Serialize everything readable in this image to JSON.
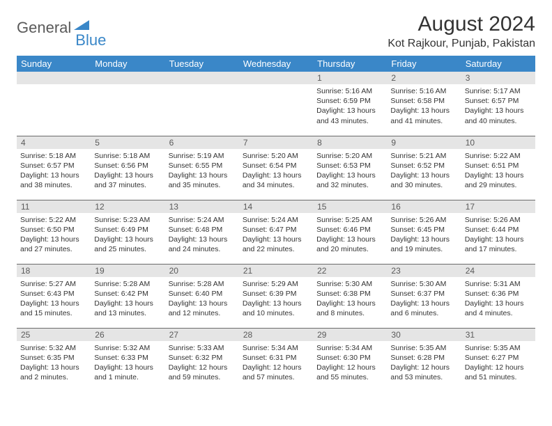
{
  "logo": {
    "part1": "General",
    "part2": "Blue"
  },
  "title": "August 2024",
  "location": "Kot Rajkour, Punjab, Pakistan",
  "colors": {
    "header_bg": "#3a87c8",
    "header_fg": "#ffffff",
    "daynum_bg": "#e5e5e5",
    "daynum_fg": "#5a5a5a",
    "border": "#6a6a6a",
    "text": "#333333"
  },
  "weekdays": [
    "Sunday",
    "Monday",
    "Tuesday",
    "Wednesday",
    "Thursday",
    "Friday",
    "Saturday"
  ],
  "weeks": [
    [
      {
        "n": "",
        "sr": "",
        "ss": "",
        "dl": ""
      },
      {
        "n": "",
        "sr": "",
        "ss": "",
        "dl": ""
      },
      {
        "n": "",
        "sr": "",
        "ss": "",
        "dl": ""
      },
      {
        "n": "",
        "sr": "",
        "ss": "",
        "dl": ""
      },
      {
        "n": "1",
        "sr": "Sunrise: 5:16 AM",
        "ss": "Sunset: 6:59 PM",
        "dl": "Daylight: 13 hours and 43 minutes."
      },
      {
        "n": "2",
        "sr": "Sunrise: 5:16 AM",
        "ss": "Sunset: 6:58 PM",
        "dl": "Daylight: 13 hours and 41 minutes."
      },
      {
        "n": "3",
        "sr": "Sunrise: 5:17 AM",
        "ss": "Sunset: 6:57 PM",
        "dl": "Daylight: 13 hours and 40 minutes."
      }
    ],
    [
      {
        "n": "4",
        "sr": "Sunrise: 5:18 AM",
        "ss": "Sunset: 6:57 PM",
        "dl": "Daylight: 13 hours and 38 minutes."
      },
      {
        "n": "5",
        "sr": "Sunrise: 5:18 AM",
        "ss": "Sunset: 6:56 PM",
        "dl": "Daylight: 13 hours and 37 minutes."
      },
      {
        "n": "6",
        "sr": "Sunrise: 5:19 AM",
        "ss": "Sunset: 6:55 PM",
        "dl": "Daylight: 13 hours and 35 minutes."
      },
      {
        "n": "7",
        "sr": "Sunrise: 5:20 AM",
        "ss": "Sunset: 6:54 PM",
        "dl": "Daylight: 13 hours and 34 minutes."
      },
      {
        "n": "8",
        "sr": "Sunrise: 5:20 AM",
        "ss": "Sunset: 6:53 PM",
        "dl": "Daylight: 13 hours and 32 minutes."
      },
      {
        "n": "9",
        "sr": "Sunrise: 5:21 AM",
        "ss": "Sunset: 6:52 PM",
        "dl": "Daylight: 13 hours and 30 minutes."
      },
      {
        "n": "10",
        "sr": "Sunrise: 5:22 AM",
        "ss": "Sunset: 6:51 PM",
        "dl": "Daylight: 13 hours and 29 minutes."
      }
    ],
    [
      {
        "n": "11",
        "sr": "Sunrise: 5:22 AM",
        "ss": "Sunset: 6:50 PM",
        "dl": "Daylight: 13 hours and 27 minutes."
      },
      {
        "n": "12",
        "sr": "Sunrise: 5:23 AM",
        "ss": "Sunset: 6:49 PM",
        "dl": "Daylight: 13 hours and 25 minutes."
      },
      {
        "n": "13",
        "sr": "Sunrise: 5:24 AM",
        "ss": "Sunset: 6:48 PM",
        "dl": "Daylight: 13 hours and 24 minutes."
      },
      {
        "n": "14",
        "sr": "Sunrise: 5:24 AM",
        "ss": "Sunset: 6:47 PM",
        "dl": "Daylight: 13 hours and 22 minutes."
      },
      {
        "n": "15",
        "sr": "Sunrise: 5:25 AM",
        "ss": "Sunset: 6:46 PM",
        "dl": "Daylight: 13 hours and 20 minutes."
      },
      {
        "n": "16",
        "sr": "Sunrise: 5:26 AM",
        "ss": "Sunset: 6:45 PM",
        "dl": "Daylight: 13 hours and 19 minutes."
      },
      {
        "n": "17",
        "sr": "Sunrise: 5:26 AM",
        "ss": "Sunset: 6:44 PM",
        "dl": "Daylight: 13 hours and 17 minutes."
      }
    ],
    [
      {
        "n": "18",
        "sr": "Sunrise: 5:27 AM",
        "ss": "Sunset: 6:43 PM",
        "dl": "Daylight: 13 hours and 15 minutes."
      },
      {
        "n": "19",
        "sr": "Sunrise: 5:28 AM",
        "ss": "Sunset: 6:42 PM",
        "dl": "Daylight: 13 hours and 13 minutes."
      },
      {
        "n": "20",
        "sr": "Sunrise: 5:28 AM",
        "ss": "Sunset: 6:40 PM",
        "dl": "Daylight: 13 hours and 12 minutes."
      },
      {
        "n": "21",
        "sr": "Sunrise: 5:29 AM",
        "ss": "Sunset: 6:39 PM",
        "dl": "Daylight: 13 hours and 10 minutes."
      },
      {
        "n": "22",
        "sr": "Sunrise: 5:30 AM",
        "ss": "Sunset: 6:38 PM",
        "dl": "Daylight: 13 hours and 8 minutes."
      },
      {
        "n": "23",
        "sr": "Sunrise: 5:30 AM",
        "ss": "Sunset: 6:37 PM",
        "dl": "Daylight: 13 hours and 6 minutes."
      },
      {
        "n": "24",
        "sr": "Sunrise: 5:31 AM",
        "ss": "Sunset: 6:36 PM",
        "dl": "Daylight: 13 hours and 4 minutes."
      }
    ],
    [
      {
        "n": "25",
        "sr": "Sunrise: 5:32 AM",
        "ss": "Sunset: 6:35 PM",
        "dl": "Daylight: 13 hours and 2 minutes."
      },
      {
        "n": "26",
        "sr": "Sunrise: 5:32 AM",
        "ss": "Sunset: 6:33 PM",
        "dl": "Daylight: 13 hours and 1 minute."
      },
      {
        "n": "27",
        "sr": "Sunrise: 5:33 AM",
        "ss": "Sunset: 6:32 PM",
        "dl": "Daylight: 12 hours and 59 minutes."
      },
      {
        "n": "28",
        "sr": "Sunrise: 5:34 AM",
        "ss": "Sunset: 6:31 PM",
        "dl": "Daylight: 12 hours and 57 minutes."
      },
      {
        "n": "29",
        "sr": "Sunrise: 5:34 AM",
        "ss": "Sunset: 6:30 PM",
        "dl": "Daylight: 12 hours and 55 minutes."
      },
      {
        "n": "30",
        "sr": "Sunrise: 5:35 AM",
        "ss": "Sunset: 6:28 PM",
        "dl": "Daylight: 12 hours and 53 minutes."
      },
      {
        "n": "31",
        "sr": "Sunrise: 5:35 AM",
        "ss": "Sunset: 6:27 PM",
        "dl": "Daylight: 12 hours and 51 minutes."
      }
    ]
  ]
}
